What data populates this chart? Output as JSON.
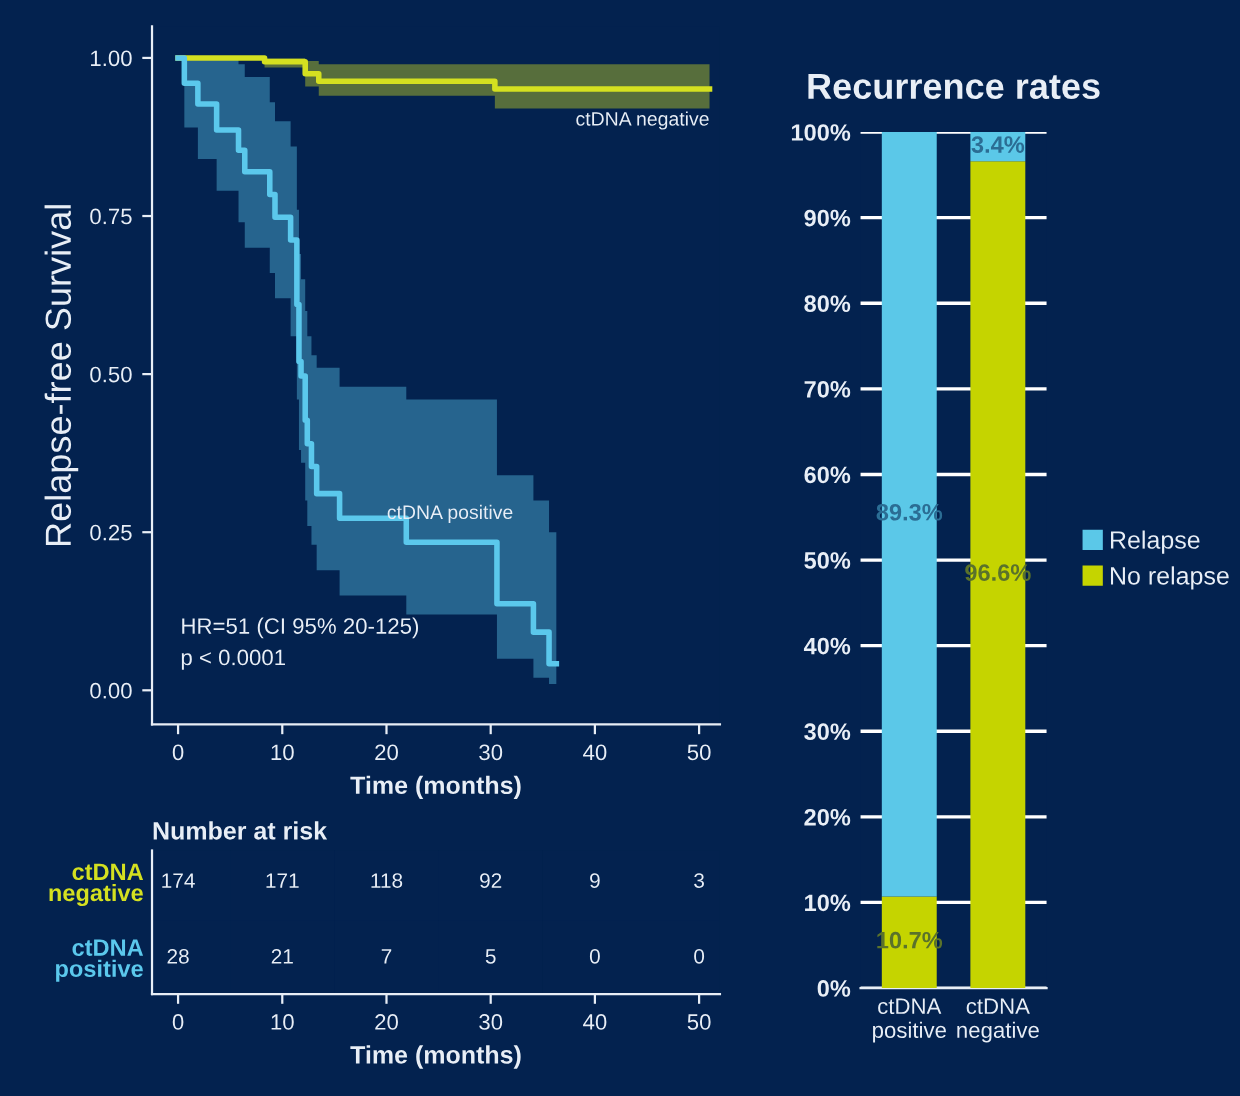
{
  "chart_data": [
    {
      "type": "step",
      "ylabel": "Relapse-free Survival",
      "xlabel": "Time (months)",
      "xlim": [
        -2.5,
        52
      ],
      "ylim": [
        -0.054,
        1.05
      ],
      "xticks": [
        0,
        10,
        20,
        30,
        40,
        50
      ],
      "yticks": [
        {
          "value": 0,
          "label": "0.00"
        },
        {
          "value": 0.25,
          "label": "0.25"
        },
        {
          "value": 0.5,
          "label": "0.50"
        },
        {
          "value": 0.75,
          "label": "0.75"
        },
        {
          "value": 1,
          "label": "1.00"
        }
      ],
      "grid": false,
      "legend": false,
      "series": [
        {
          "name": "ctDNA negative",
          "color": "#d4e020",
          "x": [
            0,
            8.3,
            12.2,
            13.5,
            30.4,
            51
          ],
          "values": [
            1.0,
            0.994,
            0.975,
            0.963,
            0.951,
            0.951
          ],
          "lower": [
            1.0,
            0.985,
            0.955,
            0.94,
            0.92,
            0.92
          ],
          "upper": [
            1.0,
            1.0,
            0.995,
            0.99,
            0.99,
            0.99
          ]
        },
        {
          "name": "ctDNA positive",
          "color": "#5bc8ec",
          "x": [
            0,
            0.6,
            1.9,
            3.7,
            5.8,
            6.4,
            8.8,
            9.3,
            10.8,
            11.4,
            11.6,
            11.8,
            12.2,
            12.4,
            12.8,
            13.3,
            15.5,
            21.9,
            30.6,
            34.1,
            35.6,
            36.3
          ],
          "values": [
            1.0,
            0.96,
            0.927,
            0.886,
            0.854,
            0.82,
            0.784,
            0.748,
            0.712,
            0.61,
            0.52,
            0.497,
            0.427,
            0.39,
            0.354,
            0.311,
            0.272,
            0.234,
            0.137,
            0.092,
            0.042,
            0.042
          ],
          "lower": [
            1.0,
            0.89,
            0.84,
            0.79,
            0.74,
            0.7,
            0.66,
            0.62,
            0.56,
            0.46,
            0.38,
            0.36,
            0.3,
            0.26,
            0.23,
            0.19,
            0.15,
            0.12,
            0.05,
            0.02,
            0.01,
            0.01
          ],
          "upper": [
            1.0,
            1.0,
            1.0,
            1.0,
            0.99,
            0.97,
            0.93,
            0.9,
            0.86,
            0.76,
            0.69,
            0.65,
            0.6,
            0.56,
            0.53,
            0.51,
            0.48,
            0.46,
            0.34,
            0.3,
            0.25,
            0.25
          ]
        }
      ],
      "annotations": [
        "HR=51 (CI 95% 20-125)",
        "p < 0.0001"
      ]
    },
    {
      "type": "heatmap",
      "title": "Number at risk",
      "xlabel": "Time (months)",
      "categories": [
        "0",
        "10",
        "20",
        "30",
        "40",
        "50"
      ],
      "y_categories": [
        "ctDNA\nnegative",
        "ctDNA\npositive"
      ],
      "cells": [
        [
          174,
          171,
          118,
          92,
          9,
          3
        ],
        [
          28,
          21,
          7,
          5,
          0,
          0
        ]
      ],
      "data_labels": true
    },
    {
      "type": "bar",
      "title": "Recurrence rates",
      "stacked": true,
      "categories": [
        "ctDNA\npositive",
        "ctDNA\nnegative"
      ],
      "ylim": [
        0,
        100
      ],
      "yticks": [
        {
          "value": 0,
          "label": "0%"
        },
        {
          "value": 10,
          "label": "10%"
        },
        {
          "value": 20,
          "label": "20%"
        },
        {
          "value": 30,
          "label": "30%"
        },
        {
          "value": 40,
          "label": "40%"
        },
        {
          "value": 50,
          "label": "50%"
        },
        {
          "value": 60,
          "label": "60%"
        },
        {
          "value": 70,
          "label": "70%"
        },
        {
          "value": 80,
          "label": "80%"
        },
        {
          "value": 90,
          "label": "90%"
        },
        {
          "value": 100,
          "label": "100%"
        }
      ],
      "grid": "y",
      "legend": "right",
      "series": [
        {
          "name": "No relapse",
          "color": "#c5d400",
          "values": [
            10.7,
            96.6
          ],
          "value_labels": [
            "10.7%",
            "96.6%"
          ]
        },
        {
          "name": "Relapse",
          "color": "#5bc8e8",
          "values": [
            89.3,
            3.4
          ],
          "value_labels": [
            "89.3%",
            "3.4%"
          ]
        }
      ]
    }
  ]
}
